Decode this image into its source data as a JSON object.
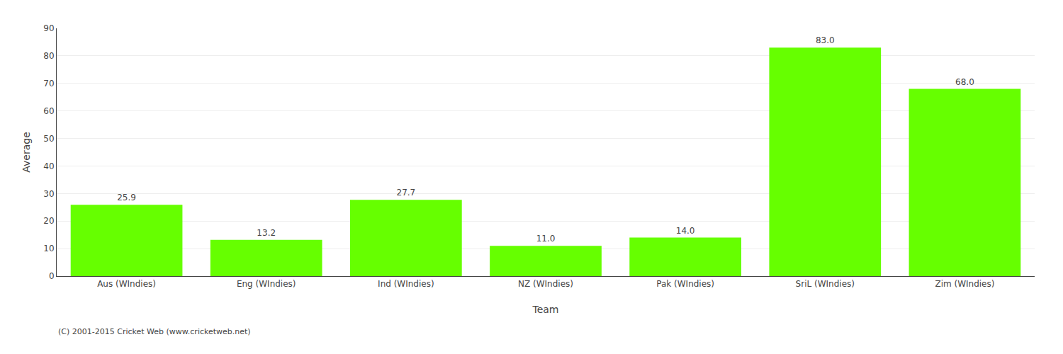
{
  "chart_data": {
    "type": "bar",
    "categories": [
      "Aus (WIndies)",
      "Eng (WIndies)",
      "Ind (WIndies)",
      "NZ (WIndies)",
      "Pak (WIndies)",
      "SriL (WIndies)",
      "Zim (WIndies)"
    ],
    "values": [
      25.9,
      13.2,
      27.7,
      11.0,
      14.0,
      83.0,
      68.0
    ],
    "value_labels": [
      "25.9",
      "13.2",
      "27.7",
      "11.0",
      "14.0",
      "83.0",
      "68.0"
    ],
    "data_labels": true,
    "color": "#66ff00",
    "xlabel": "Team",
    "ylabel": "Average",
    "ylim": [
      0,
      90
    ],
    "yticks": [
      0,
      10,
      20,
      30,
      40,
      50,
      60,
      70,
      80,
      90
    ],
    "grid": true,
    "footnote": "(C) 2001-2015 Cricket Web (www.cricketweb.net)"
  }
}
